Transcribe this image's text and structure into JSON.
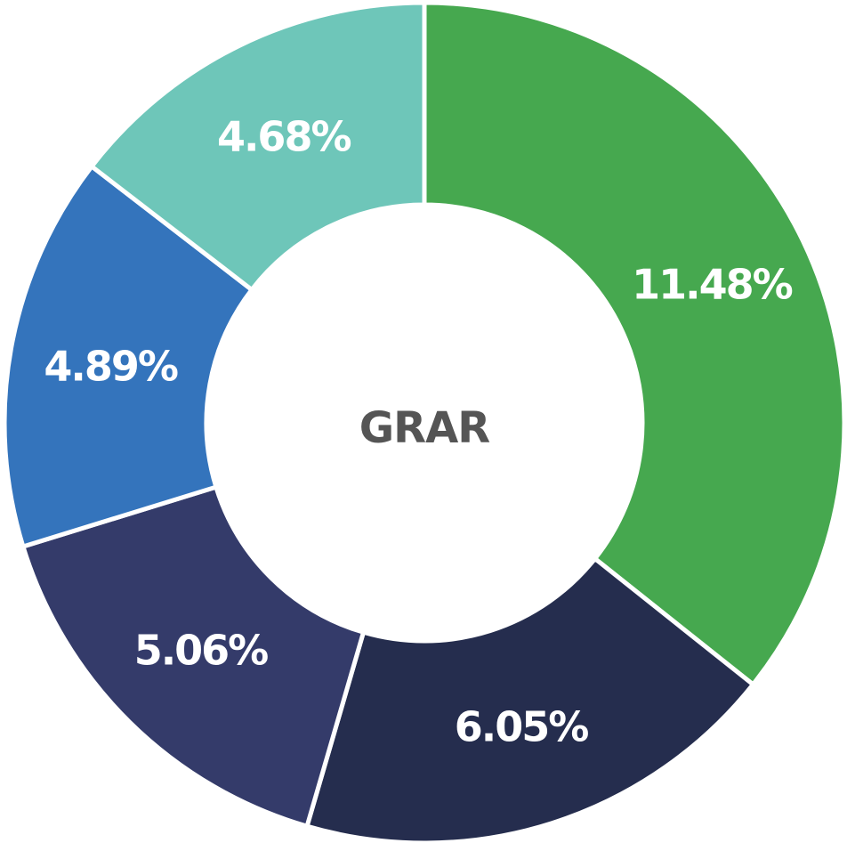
{
  "chart_data": {
    "type": "donut",
    "center_text": "GRAR",
    "values": [
      11.48,
      6.05,
      5.06,
      4.89,
      4.68
    ],
    "value_labels": [
      "11.48%",
      "6.05%",
      "5.06%",
      "4.89%",
      "4.68%"
    ],
    "colors": [
      "#46a84f",
      "#252d4e",
      "#343b6a",
      "#3474bc",
      "#6ec6b9"
    ]
  }
}
